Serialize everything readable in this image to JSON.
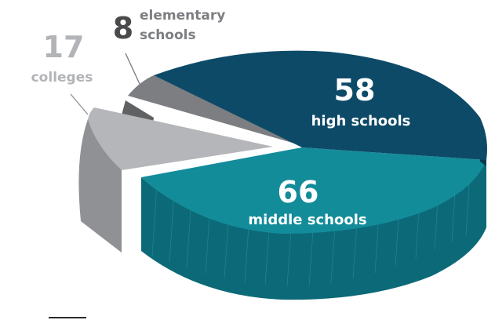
{
  "chart_data": {
    "type": "pie",
    "style": "3d-exploded",
    "slices": [
      {
        "key": "high",
        "value": 58,
        "label": "high schools",
        "top_color": "#0d4a68",
        "side_color": "#0a3a52",
        "text_color": "#ffffff"
      },
      {
        "key": "middle",
        "value": 66,
        "label": "middle schools",
        "top_color": "#138c9a",
        "side_color": "#0c6a78",
        "text_color": "#ffffff"
      },
      {
        "key": "colleges",
        "value": 17,
        "label": "colleges",
        "top_color": "#b4b6b9",
        "side_color": "#8f9194",
        "text_color": "#b2b4b7"
      },
      {
        "key": "elementary",
        "value": 8,
        "label": "elementary schools",
        "label_line1": "elementary",
        "label_line2": "schools",
        "top_color": "#7c7e81",
        "side_color": "#5f6163",
        "text_color": "#4a4a4c",
        "label_color": "#7c7e81"
      }
    ]
  }
}
